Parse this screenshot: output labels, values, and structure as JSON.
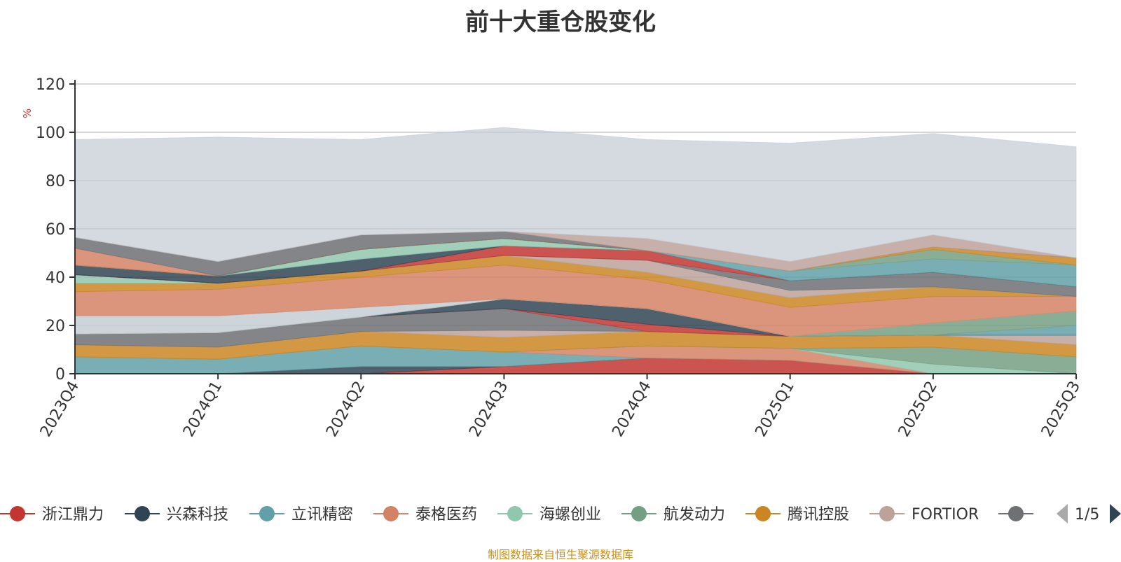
{
  "chart_data": {
    "type": "area",
    "title": "前十大重仓股变化",
    "ylabel": "%",
    "ylim": [
      0,
      120
    ],
    "yticks": [
      0,
      20,
      40,
      60,
      80,
      100,
      120
    ],
    "categories": [
      "2023Q4",
      "2024Q1",
      "2024Q2",
      "2024Q3",
      "2024Q4",
      "2025Q1",
      "2025Q2",
      "2025Q3"
    ],
    "grid": true,
    "legend_position": "bottom",
    "series": [
      {
        "name": "浙江鼎力",
        "color": "#c23531",
        "values": [
          0,
          0,
          0,
          3,
          6.5,
          5.5,
          0,
          0
        ]
      },
      {
        "name": "兴森科技",
        "color": "#2f4554",
        "values": [
          0,
          0,
          3,
          0,
          0,
          0,
          0,
          0
        ]
      },
      {
        "name": "立讯精密",
        "color": "#61a0a8",
        "values": [
          7,
          6,
          8.5,
          6,
          0,
          0,
          0,
          0
        ]
      },
      {
        "name": "泰格医药",
        "color": "#d48265",
        "values": [
          0,
          0,
          0,
          0,
          5,
          5,
          0,
          0
        ]
      },
      {
        "name": "海螺创业",
        "color": "#91c7ae",
        "values": [
          0,
          0,
          0,
          0,
          0,
          0,
          4,
          0
        ]
      },
      {
        "name": "航发动力",
        "color": "#749f83",
        "values": [
          0,
          0,
          0,
          0,
          0,
          0,
          7,
          7
        ]
      },
      {
        "name": "腾讯控股",
        "color": "#ca8622",
        "values": [
          5,
          5,
          6,
          6,
          6,
          5,
          5,
          5
        ]
      },
      {
        "name": "FORTIOR",
        "color": "#bda29a",
        "values": [
          0,
          0,
          0,
          3,
          0,
          0,
          0,
          4
        ]
      },
      {
        "name": "",
        "color": "#6e7074",
        "values": [
          4.5,
          6,
          6,
          9,
          0,
          0,
          0,
          0
        ]
      },
      {
        "name": "",
        "color": "#c23531",
        "values": [
          0,
          0,
          0,
          0,
          3,
          0,
          0,
          0
        ]
      },
      {
        "name": "",
        "color": "#2f4554",
        "values": [
          0,
          0,
          0,
          4,
          6.5,
          0,
          0,
          0
        ]
      },
      {
        "name": "",
        "color": "#61a0a8",
        "values": [
          0,
          0,
          0,
          0,
          0,
          0,
          0,
          4
        ]
      },
      {
        "name": "",
        "color": "#d48265",
        "values": [
          0,
          0,
          0,
          0,
          0,
          0,
          0,
          0
        ]
      },
      {
        "name": "",
        "color": "#91c7ae",
        "values": [
          0,
          0,
          0,
          0,
          0,
          0,
          0,
          0
        ]
      },
      {
        "name": "",
        "color": "#749f83",
        "values": [
          0,
          0,
          0,
          0,
          0,
          0,
          5,
          6
        ]
      },
      {
        "name": "",
        "color": "#c4ccd3",
        "values": [
          7.5,
          7,
          4,
          0,
          0,
          0,
          0,
          0
        ]
      },
      {
        "name": "",
        "color": "#d48265",
        "values": [
          10,
          11,
          12.5,
          14,
          12,
          12,
          11,
          6
        ]
      },
      {
        "name": "",
        "color": "#ca8622",
        "values": [
          3.5,
          2.5,
          2.5,
          4,
          3,
          4,
          4,
          0
        ]
      },
      {
        "name": "",
        "color": "#91c7ae",
        "values": [
          3.5,
          0,
          0,
          0,
          0,
          0,
          0,
          0
        ]
      },
      {
        "name": "",
        "color": "#bda29a",
        "values": [
          0,
          0,
          0,
          0,
          5,
          3,
          0,
          0
        ]
      },
      {
        "name": "",
        "color": "#6e7074",
        "values": [
          0,
          0,
          0,
          0,
          0,
          4,
          6,
          4
        ]
      },
      {
        "name": "",
        "color": "#c23531",
        "values": [
          0,
          0,
          0,
          4,
          4,
          0,
          0,
          0
        ]
      },
      {
        "name": "",
        "color": "#2f4554",
        "values": [
          4,
          3,
          5,
          0,
          0,
          0,
          0,
          0
        ]
      },
      {
        "name": "",
        "color": "#61a0a8",
        "values": [
          0,
          0,
          0,
          0,
          0,
          4,
          5.5,
          9
        ]
      },
      {
        "name": "",
        "color": "#91c7ae",
        "values": [
          0,
          0,
          4,
          3,
          0,
          0,
          0,
          0
        ]
      },
      {
        "name": "",
        "color": "#749f83",
        "values": [
          0,
          0,
          0,
          0,
          0,
          0,
          4,
          0
        ]
      },
      {
        "name": "",
        "color": "#ca8622",
        "values": [
          0,
          0,
          0,
          0,
          0,
          0,
          1,
          3
        ]
      },
      {
        "name": "",
        "color": "#d48265",
        "values": [
          7,
          0,
          0,
          0,
          0,
          0,
          0,
          0
        ]
      },
      {
        "name": "",
        "color": "#6e7074",
        "values": [
          4.5,
          6,
          6,
          3,
          0,
          0,
          0,
          0
        ]
      },
      {
        "name": "",
        "color": "#bda29a",
        "values": [
          0,
          0,
          0,
          0,
          5,
          4,
          5,
          0
        ]
      },
      {
        "name": "",
        "color": "#c4ccd3",
        "values": [
          40.5,
          51.5,
          39.5,
          43,
          41,
          49,
          42,
          46
        ]
      }
    ]
  },
  "legend": {
    "page_indicator": "1/5"
  },
  "footer": {
    "note": "制图数据来自恒生聚源数据库"
  }
}
